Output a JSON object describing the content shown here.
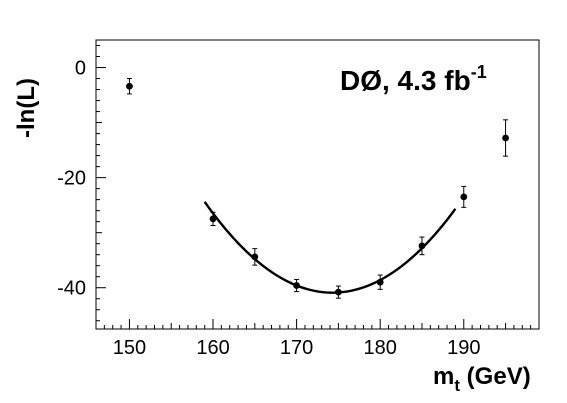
{
  "chart_data": {
    "type": "scatter",
    "title": "",
    "annotation": {
      "main": "DØ, 4.3 fb",
      "superscript": "-1"
    },
    "xlabel": {
      "main": "m",
      "subscript": "t",
      "unit": " (GeV)"
    },
    "ylabel": "-ln(L)",
    "xlim": [
      146,
      199
    ],
    "ylim": [
      -47.5,
      5
    ],
    "x_ticks": [
      150,
      160,
      170,
      180,
      190
    ],
    "y_ticks": [
      0,
      -20,
      -40
    ],
    "x_tick_labels": [
      "150",
      "160",
      "170",
      "180",
      "190"
    ],
    "y_tick_labels": [
      "0",
      "-20",
      "-40"
    ],
    "series": [
      {
        "x": [
          150,
          160,
          165,
          170,
          175,
          180,
          185,
          190,
          195
        ],
        "y": [
          -3.4,
          -27.5,
          -34.4,
          -39.6,
          -40.8,
          -39.0,
          -32.4,
          -23.5,
          -12.8
        ],
        "yerr": [
          1.4,
          1.2,
          1.5,
          1.1,
          1.1,
          1.3,
          1.6,
          1.9,
          3.3
        ]
      }
    ],
    "fit_curve": {
      "type": "quadratic",
      "xmin": 159,
      "xmax": 189,
      "vertex_x": 174.3,
      "vertex_y": -40.9,
      "curvature": 0.0705
    },
    "grid": false,
    "legend": "none"
  }
}
